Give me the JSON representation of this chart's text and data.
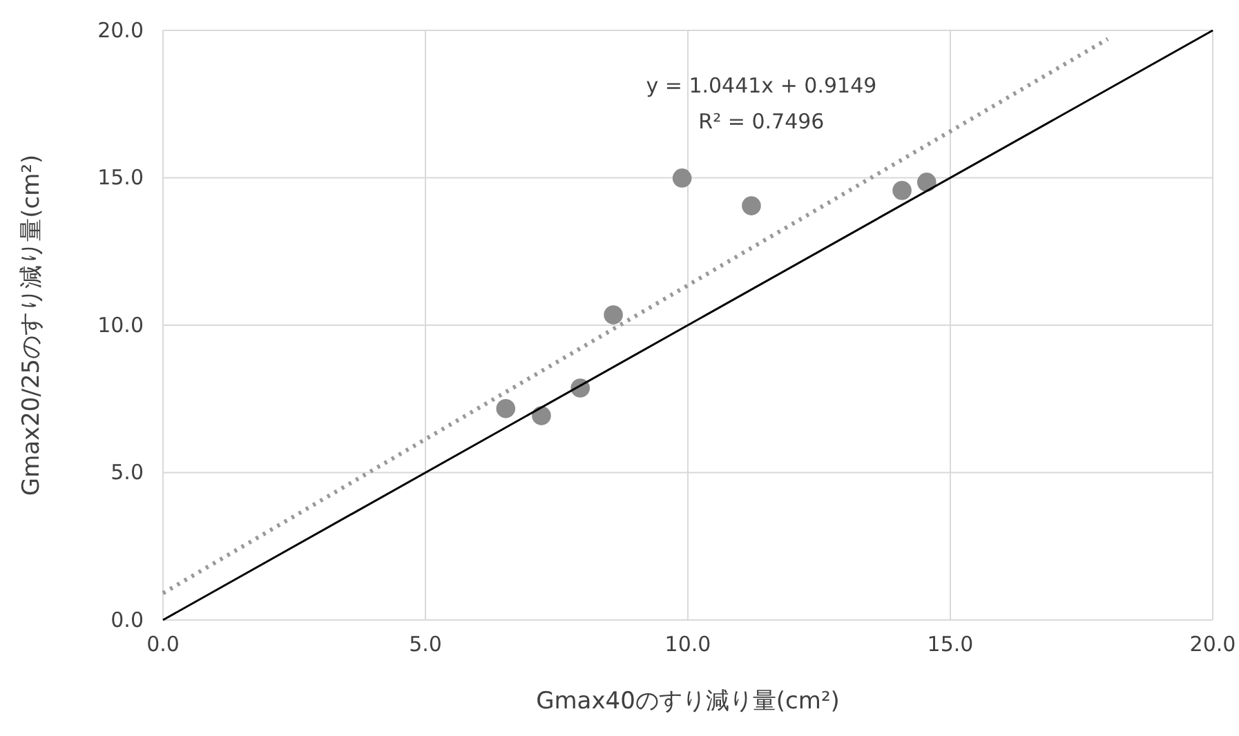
{
  "chart_data": {
    "type": "scatter",
    "xlabel": "Gmax40のすり減り量(cm²)",
    "ylabel": "Gmax20/25のすり減り量(cm²)",
    "xlim": [
      0,
      20
    ],
    "ylim": [
      0,
      20
    ],
    "xticks": [
      {
        "value": 0,
        "label": "0.0"
      },
      {
        "value": 5,
        "label": "5.0"
      },
      {
        "value": 10,
        "label": "10.0"
      },
      {
        "value": 15,
        "label": "15.0"
      },
      {
        "value": 20,
        "label": "20.0"
      }
    ],
    "yticks": [
      {
        "value": 0,
        "label": "0.0"
      },
      {
        "value": 5,
        "label": "5.0"
      },
      {
        "value": 10,
        "label": "10.0"
      },
      {
        "value": 15,
        "label": "15.0"
      },
      {
        "value": 20,
        "label": "20.0"
      }
    ],
    "grid": true,
    "annotations": [
      "y = 1.0441x + 0.9149",
      "R² = 0.7496"
    ],
    "series": [
      {
        "color": "#8c8c8c",
        "marker": "circle",
        "x": [
          6.53,
          7.21,
          7.95,
          8.58,
          9.89,
          11.21,
          14.08,
          14.55
        ],
        "values": [
          7.17,
          6.93,
          7.87,
          10.35,
          14.99,
          14.05,
          14.57,
          14.85
        ]
      },
      {
        "type": "line",
        "color": "#999999",
        "line_style": "dotted",
        "marker": "none",
        "x": [
          0,
          18
        ],
        "values": [
          0.91,
          19.71
        ]
      },
      {
        "type": "line",
        "color": "#000000",
        "line_style": "solid",
        "marker": "none",
        "x": [
          0,
          20
        ],
        "values": [
          0,
          20
        ]
      }
    ]
  }
}
